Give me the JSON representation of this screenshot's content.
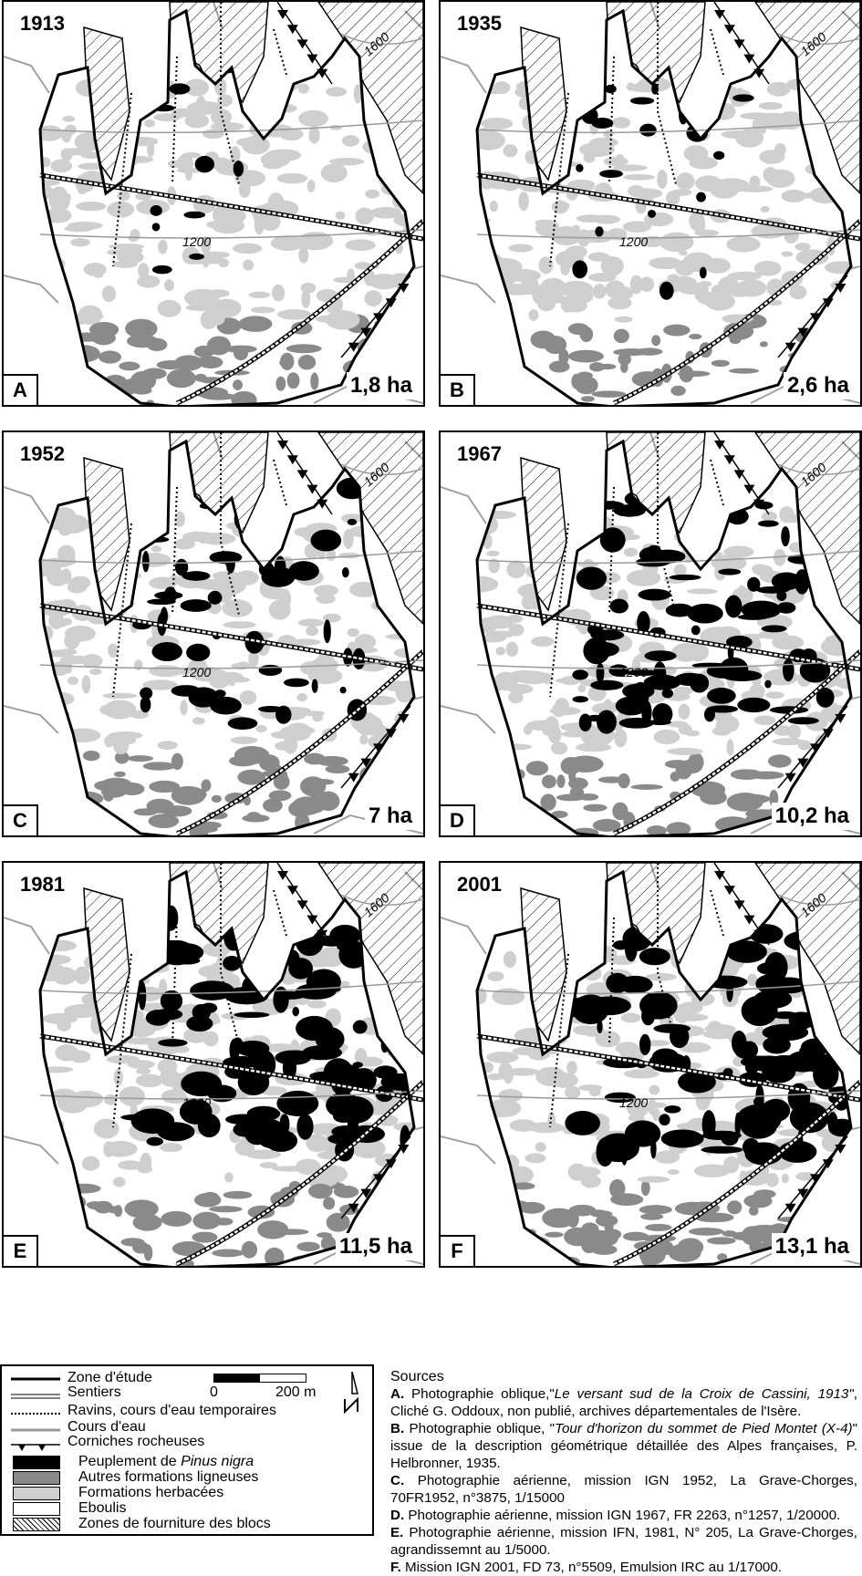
{
  "panels": [
    {
      "year": "1913",
      "letter": "A",
      "area": "1,8 ha",
      "contour_upper": "1600",
      "contour_lower": "1200",
      "pine": 0.05
    },
    {
      "year": "1935",
      "letter": "B",
      "area": "2,6 ha",
      "contour_upper": "1600",
      "contour_lower": "1200",
      "pine": 0.08
    },
    {
      "year": "1952",
      "letter": "C",
      "area": "7 ha",
      "contour_upper": "1600",
      "contour_lower": "1200",
      "pine": 0.25
    },
    {
      "year": "1967",
      "letter": "D",
      "area": "10,2 ha",
      "contour_upper": "1600",
      "contour_lower": "1200",
      "pine": 0.38
    },
    {
      "year": "1981",
      "letter": "E",
      "area": "11,5 ha",
      "contour_upper": "1600",
      "contour_lower": "1200",
      "pine": 0.45
    },
    {
      "year": "2001",
      "letter": "F",
      "area": "13,1 ha",
      "contour_upper": "1600",
      "contour_lower": "1200",
      "pine": 0.5
    }
  ],
  "legend": {
    "lines": [
      {
        "label": "Zone d'étude",
        "style": "study-zone"
      },
      {
        "label": "Sentiers",
        "style": "trail"
      },
      {
        "label": "Ravins, cours d'eau temporaires",
        "style": "ravine"
      },
      {
        "label": "Cours d'eau",
        "style": "stream"
      },
      {
        "label": "Corniches rocheuses",
        "style": "cliff"
      }
    ],
    "boxes": [
      {
        "label_pre": "Peuplement de ",
        "label_italic": "Pinus nigra",
        "fill": "#000000"
      },
      {
        "label_pre": "Autres formations ligneuses",
        "label_italic": "",
        "fill": "#8a8a8a"
      },
      {
        "label_pre": "Formations herbacées",
        "label_italic": "",
        "fill": "#cfcfcf"
      },
      {
        "label_pre": "Eboulis",
        "label_italic": "",
        "fill": "#ffffff"
      },
      {
        "label_pre": "Zones de fourniture des blocs",
        "label_italic": "",
        "fill": "hatch"
      }
    ],
    "scale": {
      "start": "0",
      "end": "200 m"
    }
  },
  "sources": {
    "title": "Sources",
    "items": [
      {
        "key": "A.",
        "parts": [
          {
            "t": " Photographie oblique,\"",
            "i": false
          },
          {
            "t": "Le versant sud de la Croix de Cassini, 1913\"",
            "i": true
          },
          {
            "t": ", Cliché G. Oddoux, non publié, archives départementales de l'Isère.",
            "i": false
          }
        ]
      },
      {
        "key": "B.",
        "parts": [
          {
            "t": " Photographie oblique, \"",
            "i": false
          },
          {
            "t": "Tour d'horizon du sommet de Pied Montet (X-4)",
            "i": true
          },
          {
            "t": "\" issue de la description géométrique détaillée des Alpes françaises, P. Helbronner, 1935.",
            "i": false
          }
        ]
      },
      {
        "key": "C.",
        "parts": [
          {
            "t": " Photographie aérienne, mission IGN 1952, La Grave-Chorges, 70FR1952, n°3875, 1/15000",
            "i": false
          }
        ]
      },
      {
        "key": "D.",
        "parts": [
          {
            "t": " Photographie aérienne, mission IGN 1967, FR 2263, n°1257, 1/20000.",
            "i": false
          }
        ]
      },
      {
        "key": "E.",
        "parts": [
          {
            "t": " Photographie aérienne, mission IFN, 1981, N° 205, La Grave-Chorges, agrandissemnt au 1/5000.",
            "i": false
          }
        ]
      },
      {
        "key": "F.",
        "parts": [
          {
            "t": " Mission IGN 2001, FD 73, n°5509, Emulsion IRC au 1/17000.",
            "i": false
          }
        ]
      }
    ]
  }
}
